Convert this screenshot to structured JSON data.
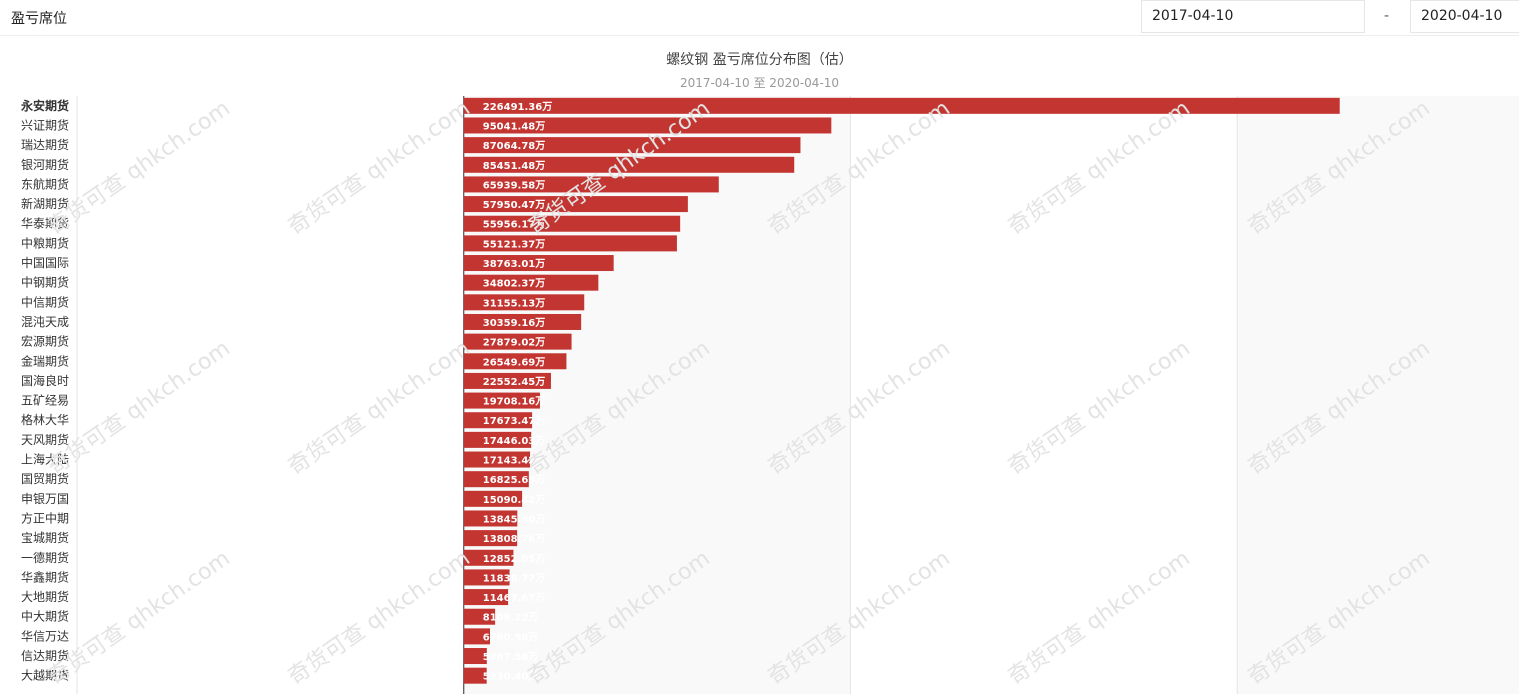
{
  "header": {
    "section_title": "盈亏席位",
    "start_date": "2017-04-10",
    "separator": "-",
    "end_date": "2020-04-10"
  },
  "watermark_text": "奇货可查 qhkch.com",
  "colors": {
    "bar": "#c23531",
    "bar_label": "#ffffff",
    "band": "#f9f9f9",
    "grid": "#e6e6e6"
  },
  "chart_data": {
    "type": "bar",
    "orientation": "horizontal",
    "title": "螺纹钢 盈亏席位分布图（估）",
    "subtitle": "2017-04-10 至 2020-04-10",
    "unit_suffix": "万",
    "categories": [
      "永安期货",
      "兴证期货",
      "瑞达期货",
      "银河期货",
      "东航期货",
      "新湖期货",
      "华泰期货",
      "中粮期货",
      "中国国际",
      "中钢期货",
      "中信期货",
      "混沌天成",
      "宏源期货",
      "金瑞期货",
      "国海良时",
      "五矿经易",
      "格林大华",
      "天风期货",
      "上海大陆",
      "国贸期货",
      "申银万国",
      "方正中期",
      "宝城期货",
      "一德期货",
      "华鑫期货",
      "大地期货",
      "中大期货",
      "华信万达",
      "信达期货",
      "大越期货"
    ],
    "values": [
      226491.36,
      95041.48,
      87064.78,
      85451.48,
      65939.58,
      57950.47,
      55956.17,
      55121.37,
      38763.01,
      34802.37,
      31155.13,
      30359.16,
      27879.02,
      26549.69,
      22552.45,
      19708.16,
      17673.47,
      17446.03,
      17143.42,
      16825.63,
      15090.42,
      13845.9,
      13808.76,
      12852.05,
      11838.77,
      11467.67,
      8109.22,
      6790.98,
      5967.56,
      5930.4
    ],
    "xlim": [
      -100000,
      300000
    ],
    "grid": true,
    "legend": "none"
  }
}
